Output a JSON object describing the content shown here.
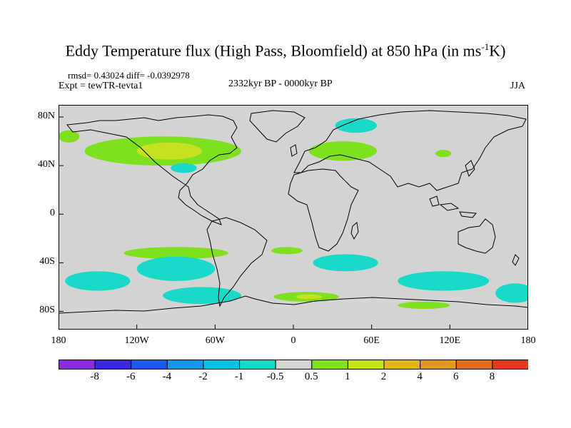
{
  "title": {
    "main": "Eddy Temperature flux (High Pass, Bloomfield) at 850 hPa (in ms",
    "sup": "-1",
    "end": "K)"
  },
  "stats": {
    "rmsd": "rmsd= 0.43024 diff= -0.0392978",
    "expt": "Expt = tewTR-tevta1",
    "period": "2332kyr BP - 0000kyr BP",
    "season": "JJA"
  },
  "axes": {
    "lat_ticks": [
      {
        "label": "80N",
        "lat": 80
      },
      {
        "label": "40N",
        "lat": 40
      },
      {
        "label": "0",
        "lat": 0
      },
      {
        "label": "40S",
        "lat": -40
      },
      {
        "label": "80S",
        "lat": -80
      }
    ],
    "lon_ticks": [
      {
        "label": "180",
        "lon": -180
      },
      {
        "label": "120W",
        "lon": -120
      },
      {
        "label": "60W",
        "lon": -60
      },
      {
        "label": "0",
        "lon": 0
      },
      {
        "label": "60E",
        "lon": 60
      },
      {
        "label": "120E",
        "lon": 120
      },
      {
        "label": "180",
        "lon": 180
      }
    ]
  },
  "colorbar": {
    "colors": [
      "#8a2be2",
      "#3c28d8",
      "#1a5ae6",
      "#1496e6",
      "#0abfe6",
      "#19d9c8",
      "#d3d3d3",
      "#7ee01e",
      "#c6e11e",
      "#e1b41e",
      "#e1961e",
      "#e16e1e",
      "#e13c1e"
    ],
    "labels": [
      "-8",
      "-6",
      "-4",
      "-2",
      "-1",
      "-0.5",
      "0.5",
      "1",
      "2",
      "4",
      "6",
      "8"
    ]
  },
  "colors": {
    "background_field": "#d3d3d3",
    "coast": "#000000"
  },
  "field_regions": [
    {
      "level": "1",
      "color": "#7ee01e",
      "lon": -100,
      "lat": 52,
      "rlon": 60,
      "rlat": 12
    },
    {
      "level": "2",
      "color": "#c6e11e",
      "lon": -95,
      "lat": 52,
      "rlon": 25,
      "rlat": 7
    },
    {
      "level": "1",
      "color": "#7ee01e",
      "lon": 38,
      "lat": 52,
      "rlon": 26,
      "rlat": 8
    },
    {
      "level": "-0.5",
      "color": "#19d9c8",
      "lon": 48,
      "lat": 73,
      "rlon": 16,
      "rlat": 6
    },
    {
      "level": "-0.5",
      "color": "#19d9c8",
      "lon": -84,
      "lat": 38,
      "rlon": 10,
      "rlat": 4
    },
    {
      "level": "1",
      "color": "#7ee01e",
      "lon": -172,
      "lat": 64,
      "rlon": 8,
      "rlat": 5
    },
    {
      "level": "1",
      "color": "#7ee01e",
      "lon": 115,
      "lat": 50,
      "rlon": 6,
      "rlat": 3
    },
    {
      "level": "1",
      "color": "#7ee01e",
      "lon": -90,
      "lat": -32,
      "rlon": 40,
      "rlat": 5
    },
    {
      "level": "1",
      "color": "#7ee01e",
      "lon": -5,
      "lat": -30,
      "rlon": 12,
      "rlat": 3
    },
    {
      "level": "-0.5",
      "color": "#19d9c8",
      "lon": -150,
      "lat": -55,
      "rlon": 25,
      "rlat": 8
    },
    {
      "level": "-0.5",
      "color": "#19d9c8",
      "lon": -90,
      "lat": -45,
      "rlon": 30,
      "rlat": 10
    },
    {
      "level": "-0.5",
      "color": "#19d9c8",
      "lon": -70,
      "lat": -67,
      "rlon": 30,
      "rlat": 7
    },
    {
      "level": "-0.5",
      "color": "#19d9c8",
      "lon": 40,
      "lat": -40,
      "rlon": 25,
      "rlat": 7
    },
    {
      "level": "-0.5",
      "color": "#19d9c8",
      "lon": 115,
      "lat": -55,
      "rlon": 35,
      "rlat": 8
    },
    {
      "level": "-0.5",
      "color": "#19d9c8",
      "lon": 170,
      "lat": -65,
      "rlon": 15,
      "rlat": 8
    },
    {
      "level": "1",
      "color": "#7ee01e",
      "lon": 10,
      "lat": -68,
      "rlon": 25,
      "rlat": 4
    },
    {
      "level": "2",
      "color": "#c6e11e",
      "lon": 12,
      "lat": -68,
      "rlon": 10,
      "rlat": 2
    },
    {
      "level": "1",
      "color": "#7ee01e",
      "lon": 100,
      "lat": -75,
      "rlon": 20,
      "rlat": 3
    }
  ]
}
